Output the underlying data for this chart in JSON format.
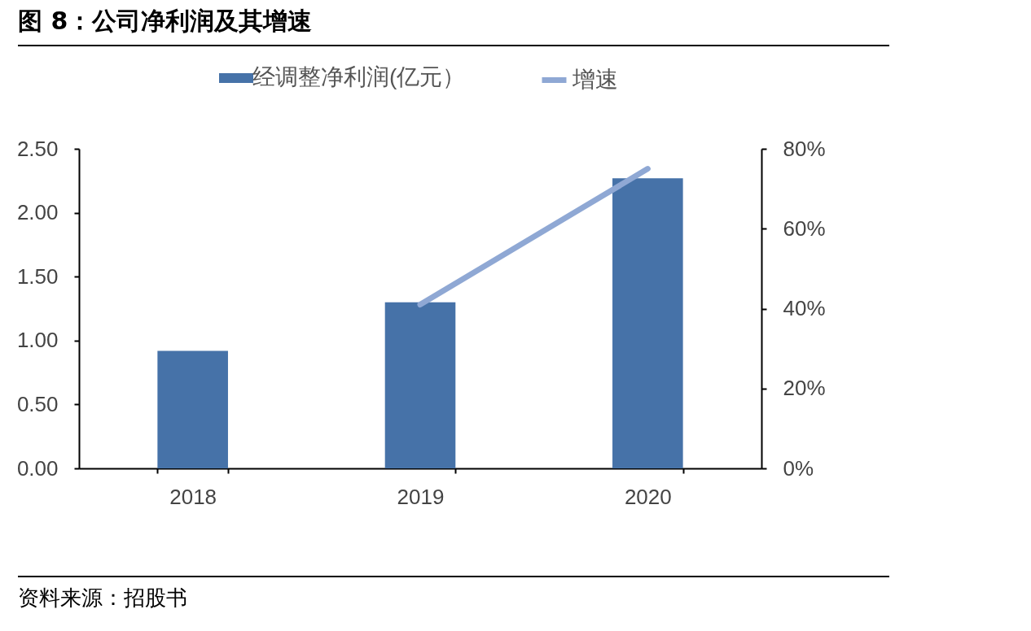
{
  "chart_data": {
    "type": "bar",
    "title": "图 8：公司净利润及其增速",
    "categories": [
      "2018",
      "2019",
      "2020"
    ],
    "series": [
      {
        "name": "经调整净利润(亿元）",
        "color": "#4672a8",
        "values": [
          0.92,
          1.3,
          2.27
        ]
      },
      {
        "name": "增速",
        "type": "line",
        "axis": "y2",
        "color": "#8fa8d4",
        "values": [
          null,
          41,
          75
        ]
      }
    ],
    "ylim": [
      0,
      2.5
    ],
    "yticks": [
      {
        "value": 0,
        "label": "0.00"
      },
      {
        "value": 0.5,
        "label": "0.50"
      },
      {
        "value": 1,
        "label": "1.00"
      },
      {
        "value": 1.5,
        "label": "1.50"
      },
      {
        "value": 2,
        "label": "2.00"
      },
      {
        "value": 2.5,
        "label": "2.50"
      }
    ],
    "y2lim": [
      0,
      80
    ],
    "y2ticks": [
      {
        "value": 0,
        "label": "0%"
      },
      {
        "value": 20,
        "label": "20%"
      },
      {
        "value": 40,
        "label": "40%"
      },
      {
        "value": 60,
        "label": "60%"
      },
      {
        "value": 80,
        "label": "80%"
      }
    ],
    "grid": false,
    "legend": "top",
    "marker": "none",
    "line_style": "solid",
    "annotations": [
      "资料来源：招股书"
    ]
  }
}
